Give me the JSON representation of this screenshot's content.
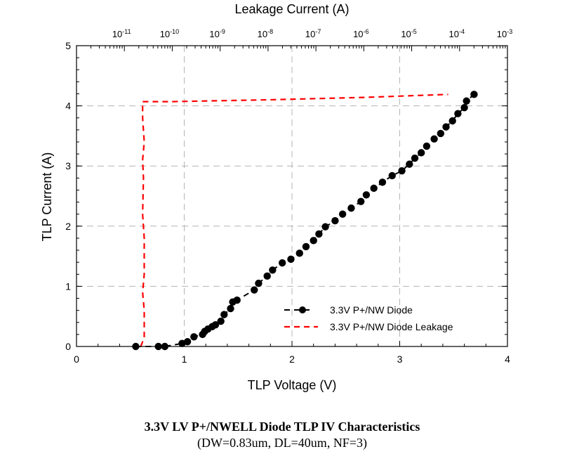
{
  "chart_data": {
    "type": "scatter",
    "title": "3.3V LV P+/NWELL Diode TLP IV Characteristics",
    "subtitle": "(DW=0.83um, DL=40um, NF=3)",
    "xlabel": "TLP Voltage (V)",
    "ylabel": "TLP Current (A)",
    "x2label": "Leakage Current (A)",
    "xlim": [
      0,
      4
    ],
    "ylim": [
      0,
      5
    ],
    "x2lim_log10": [
      -12,
      -3
    ],
    "x_ticks": [
      "0",
      "1",
      "2",
      "3",
      "4"
    ],
    "y_ticks": [
      "0",
      "1",
      "2",
      "3",
      "4",
      "5"
    ],
    "x2_ticks": [
      {
        "base": "10",
        "exp": "-11"
      },
      {
        "base": "10",
        "exp": "-10"
      },
      {
        "base": "10",
        "exp": "-9"
      },
      {
        "base": "10",
        "exp": "-8"
      },
      {
        "base": "10",
        "exp": "-7"
      },
      {
        "base": "10",
        "exp": "-6"
      },
      {
        "base": "10",
        "exp": "-5"
      },
      {
        "base": "10",
        "exp": "-4"
      },
      {
        "base": "10",
        "exp": "-3"
      }
    ],
    "grid": true,
    "legend_position": "bottom-right",
    "series": [
      {
        "name": "3.3V P+/NW Diode",
        "color": "#000000",
        "axis": "bottom",
        "marker": "circle",
        "line": "dashed",
        "points": [
          [
            0.55,
            0
          ],
          [
            0.76,
            0
          ],
          [
            0.82,
            0
          ],
          [
            0.98,
            0.05
          ],
          [
            1.03,
            0.08
          ],
          [
            1.09,
            0.16
          ],
          [
            1.17,
            0.2
          ],
          [
            1.19,
            0.25
          ],
          [
            1.22,
            0.29
          ],
          [
            1.26,
            0.33
          ],
          [
            1.29,
            0.36
          ],
          [
            1.34,
            0.42
          ],
          [
            1.37,
            0.53
          ],
          [
            1.43,
            0.63
          ],
          [
            1.45,
            0.74
          ],
          [
            1.49,
            0.77
          ],
          [
            1.65,
            0.94
          ],
          [
            1.69,
            1.05
          ],
          [
            1.77,
            1.17
          ],
          [
            1.82,
            1.27
          ],
          [
            1.91,
            1.39
          ],
          [
            1.99,
            1.45
          ],
          [
            2.07,
            1.55
          ],
          [
            2.13,
            1.66
          ],
          [
            2.2,
            1.76
          ],
          [
            2.25,
            1.87
          ],
          [
            2.31,
            1.99
          ],
          [
            2.4,
            2.09
          ],
          [
            2.47,
            2.2
          ],
          [
            2.55,
            2.3
          ],
          [
            2.64,
            2.41
          ],
          [
            2.69,
            2.52
          ],
          [
            2.76,
            2.63
          ],
          [
            2.84,
            2.73
          ],
          [
            2.93,
            2.84
          ],
          [
            3.02,
            2.92
          ],
          [
            3.09,
            3.03
          ],
          [
            3.14,
            3.13
          ],
          [
            3.2,
            3.22
          ],
          [
            3.25,
            3.33
          ],
          [
            3.32,
            3.45
          ],
          [
            3.38,
            3.54
          ],
          [
            3.43,
            3.65
          ],
          [
            3.49,
            3.75
          ],
          [
            3.54,
            3.87
          ],
          [
            3.6,
            3.97
          ],
          [
            3.62,
            4.08
          ],
          [
            3.69,
            4.19
          ]
        ]
      },
      {
        "name": "3.3V P+/NW Diode Leakage",
        "color": "#ff0000",
        "axis": "top",
        "marker": "none",
        "line": "dashed",
        "points": [
          [
            2.2e-11,
            0
          ],
          [
            2.6e-11,
            0.15
          ],
          [
            2.6e-11,
            0.6
          ],
          [
            2.4e-11,
            0.9
          ],
          [
            2.6e-11,
            1.2
          ],
          [
            2.6e-11,
            1.8
          ],
          [
            2.4e-11,
            2.2
          ],
          [
            2.5e-11,
            2.8
          ],
          [
            2.4e-11,
            3.1
          ],
          [
            2.6e-11,
            3.4
          ],
          [
            2.4e-11,
            3.8
          ],
          [
            2.4e-11,
            4.07
          ],
          [
            1e-10,
            4.07
          ],
          [
            1e-08,
            4.1
          ],
          [
            1e-06,
            4.14
          ],
          [
            5.8e-05,
            4.19
          ]
        ]
      }
    ]
  }
}
